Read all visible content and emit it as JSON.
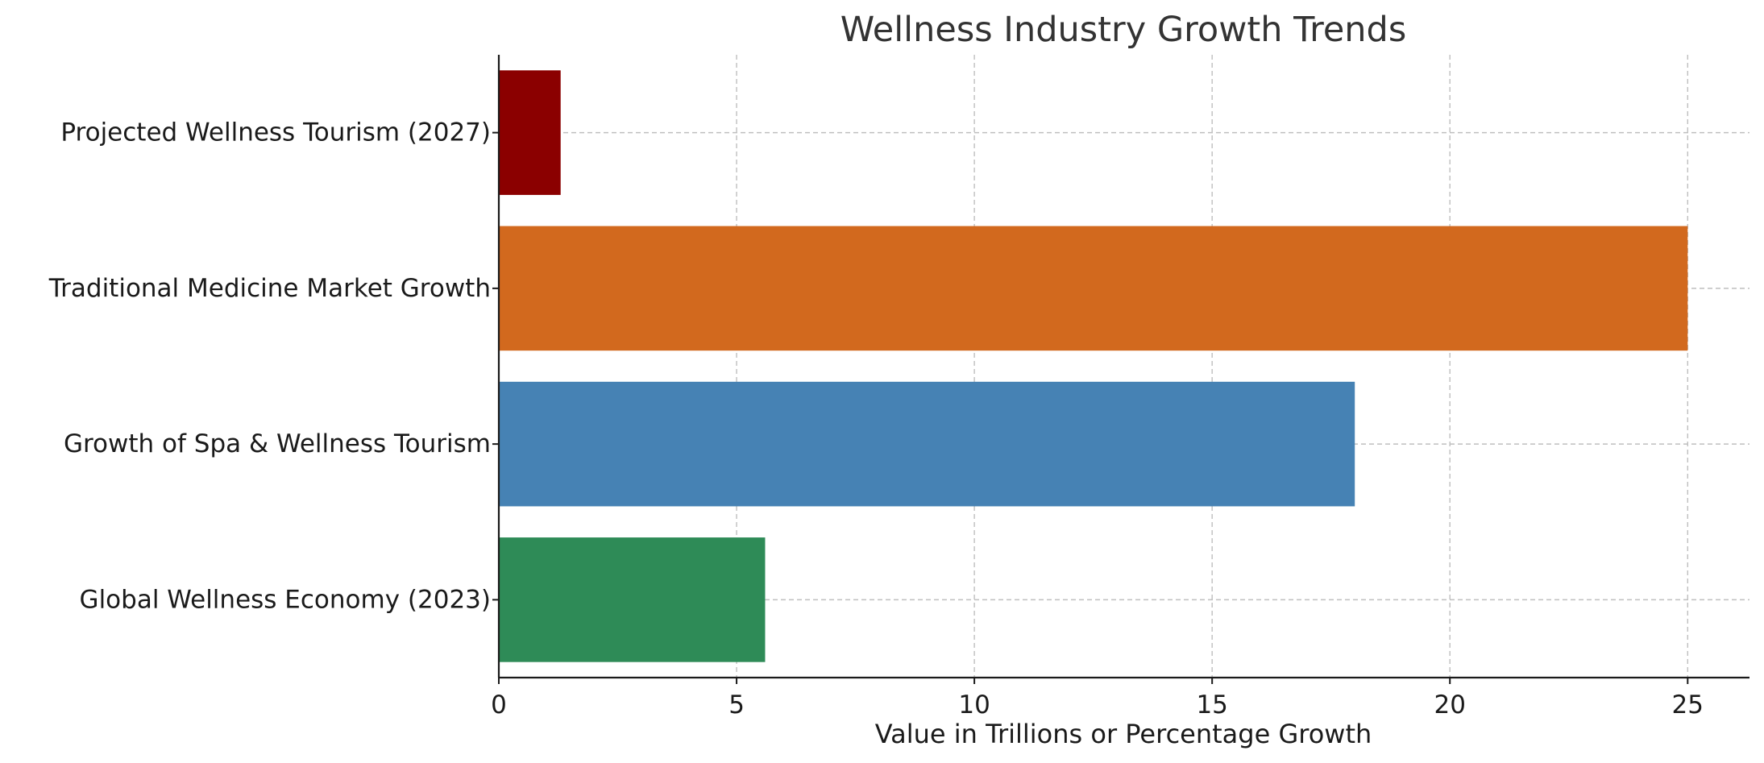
{
  "chart_data": {
    "type": "bar",
    "orientation": "horizontal",
    "title": "Wellness Industry Growth Trends",
    "xlabel": "Value in Trillions or Percentage Growth",
    "ylabel": "",
    "xlim": [
      0,
      26.3
    ],
    "xticks": [
      0,
      5,
      10,
      15,
      20,
      25
    ],
    "xtick_labels": [
      "0",
      "5",
      "10",
      "15",
      "20",
      "25"
    ],
    "grid": true,
    "legend": "none",
    "categories": [
      "Global Wellness Economy (2023)",
      "Growth of Spa & Wellness Tourism",
      "Traditional Medicine Market Growth",
      "Projected Wellness Tourism (2027)"
    ],
    "values": [
      5.6,
      18,
      25,
      1.3
    ],
    "colors": [
      "#2e8b57",
      "#4682b4",
      "#d2691e",
      "#8b0000"
    ]
  }
}
